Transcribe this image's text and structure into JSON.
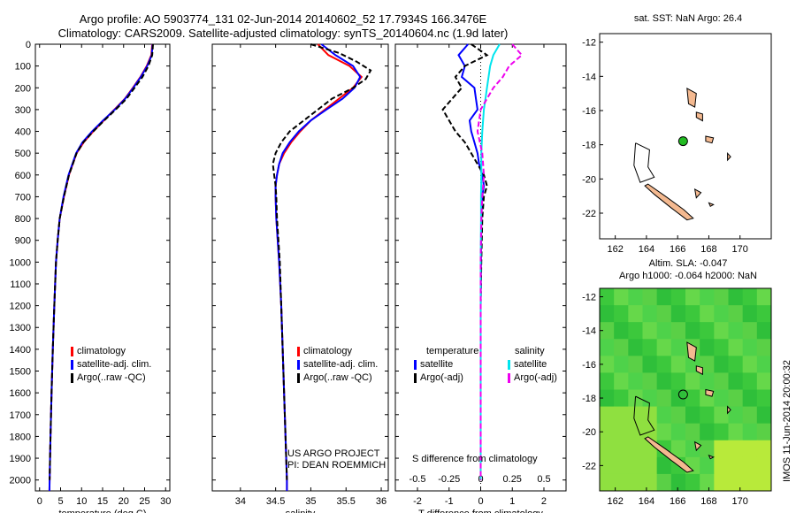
{
  "header": {
    "line1": "Argo profile: AO 5903774_131 02-Jun-2014 20140602_52 17.7934S 166.3476E",
    "line2": "Climatology: CARS2009. Satellite-adjusted climatology: synTS_20140604.nc (1.9d later)"
  },
  "colors": {
    "climatology": "#ff0000",
    "satellite": "#0000ff",
    "argo": "#000000",
    "sat_s": "#00e5ee",
    "argo_s": "#ee00ee",
    "land": "#f4b990"
  },
  "chart_data": [
    {
      "type": "line",
      "id": "temperature",
      "xlabel": "temperature (deg C)",
      "xlim": [
        -1,
        31
      ],
      "ylim": [
        2050,
        0
      ],
      "xticks": [
        0,
        5,
        10,
        15,
        20,
        25,
        30
      ],
      "yticks": [
        0,
        100,
        200,
        300,
        400,
        500,
        600,
        700,
        800,
        900,
        1000,
        1100,
        1200,
        1300,
        1400,
        1500,
        1600,
        1700,
        1800,
        1900,
        2000
      ],
      "series": [
        {
          "name": "climatology",
          "color": "#ff0000",
          "dash": "",
          "depth": [
            0,
            50,
            100,
            150,
            200,
            250,
            300,
            350,
            400,
            450,
            500,
            600,
            700,
            800,
            900,
            1000,
            1200,
            1400,
            1600,
            1800,
            2000,
            2050
          ],
          "values": [
            26.8,
            26.6,
            25.5,
            24,
            22.2,
            20.3,
            17.8,
            15.3,
            12.8,
            10.5,
            8.8,
            7,
            5.8,
            4.8,
            4.3,
            3.9,
            3.5,
            3.15,
            2.85,
            2.6,
            2.4,
            2.35
          ]
        },
        {
          "name": "satellite-adj. clim.",
          "color": "#0000ff",
          "dash": "",
          "depth": [
            0,
            50,
            100,
            150,
            200,
            250,
            300,
            350,
            400,
            450,
            500,
            600,
            700,
            800,
            900,
            1000,
            1200,
            1400,
            1600,
            1800,
            2000,
            2050
          ],
          "values": [
            26.9,
            26.7,
            25.6,
            24.1,
            22.3,
            20.4,
            17.9,
            15.1,
            12.5,
            10.2,
            8.7,
            6.9,
            5.7,
            4.8,
            4.3,
            3.9,
            3.5,
            3.15,
            2.85,
            2.6,
            2.4,
            2.35
          ]
        },
        {
          "name": "Argo(..raw -QC)",
          "color": "#000000",
          "dash": "6,3",
          "depth": [
            0,
            50,
            100,
            150,
            200,
            250,
            300,
            350,
            400,
            450,
            500,
            600,
            700,
            800,
            900,
            1000,
            1200,
            1400,
            1600,
            1800,
            2000
          ],
          "values": [
            27,
            26.8,
            25.9,
            24.5,
            22.6,
            20.7,
            18.1,
            15.4,
            12.8,
            10.4,
            8.8,
            7,
            5.8,
            4.8,
            4.3,
            3.9,
            3.5,
            3.15,
            2.85,
            2.6,
            2.4
          ]
        }
      ],
      "legend": [
        "climatology",
        "satellite-adj. clim.",
        "Argo(..raw -QC)"
      ]
    },
    {
      "type": "line",
      "id": "salinity",
      "xlabel": "salinity",
      "xlim": [
        33.6,
        36.1
      ],
      "ylim": [
        2050,
        0
      ],
      "xticks": [
        34,
        34.5,
        35,
        35.5,
        36
      ],
      "series": [
        {
          "name": "climatology",
          "color": "#ff0000",
          "dash": "",
          "depth": [
            0,
            50,
            100,
            150,
            200,
            250,
            300,
            350,
            400,
            450,
            500,
            550,
            600,
            650,
            700,
            800,
            900,
            1000,
            1200,
            1400,
            1600,
            1800,
            2000,
            2050
          ],
          "values": [
            35.1,
            35.25,
            35.55,
            35.72,
            35.6,
            35.4,
            35.2,
            35.0,
            34.85,
            34.72,
            34.62,
            34.55,
            34.52,
            34.5,
            34.5,
            34.51,
            34.53,
            34.55,
            34.58,
            34.6,
            34.62,
            34.64,
            34.66,
            34.66
          ]
        },
        {
          "name": "satellite-adj. clim.",
          "color": "#0000ff",
          "dash": "",
          "depth": [
            0,
            50,
            100,
            150,
            200,
            250,
            300,
            350,
            400,
            450,
            500,
            550,
            600,
            650,
            700,
            800,
            900,
            1000,
            1200,
            1400,
            1600,
            1800,
            2000,
            2050
          ],
          "values": [
            35.15,
            35.35,
            35.6,
            35.7,
            35.62,
            35.45,
            35.22,
            35.0,
            34.83,
            34.7,
            34.6,
            34.55,
            34.52,
            34.5,
            34.5,
            34.51,
            34.53,
            34.55,
            34.58,
            34.6,
            34.62,
            34.64,
            34.66,
            34.66
          ]
        },
        {
          "name": "Argo(..raw -QC)",
          "color": "#000000",
          "dash": "6,3",
          "depth": [
            0,
            40,
            80,
            120,
            160,
            200,
            250,
            300,
            350,
            400,
            450,
            500,
            550,
            600,
            650,
            700,
            800,
            900,
            1000,
            1200,
            1400,
            1600,
            1800,
            2000
          ],
          "values": [
            35.0,
            35.4,
            35.65,
            35.85,
            35.78,
            35.6,
            35.3,
            35.1,
            34.9,
            34.7,
            34.58,
            34.5,
            34.46,
            34.48,
            34.5,
            34.51,
            34.52,
            34.54,
            34.56,
            34.58,
            34.6,
            34.62,
            34.64,
            34.66
          ]
        }
      ],
      "legend": [
        "climatology",
        "satellite-adj. clim.",
        "Argo(..raw -QC)"
      ]
    },
    {
      "type": "line",
      "id": "difference",
      "xlabel": "T difference from climatology",
      "xlabel_top": "S difference from climatology",
      "xlim": [
        -2.7,
        2.7
      ],
      "ylim": [
        2050,
        0
      ],
      "xticks": [
        -2,
        -1,
        0,
        1,
        2
      ],
      "xtick_labels_top": [
        "-0.5",
        "-0.25",
        "0",
        "0.25",
        "0.5"
      ],
      "series": [
        {
          "name": "temperature satellite",
          "color": "#0000ff",
          "dash": "",
          "depth": [
            0,
            50,
            100,
            150,
            200,
            250,
            300,
            350,
            400,
            450,
            500,
            550,
            600,
            650,
            700,
            800,
            1000,
            1200,
            1500,
            1800,
            2000
          ],
          "values": [
            -0.4,
            -0.7,
            -0.5,
            -0.6,
            -0.2,
            -0.15,
            -0.1,
            -0.35,
            -0.3,
            -0.2,
            -0.1,
            -0.05,
            0.05,
            0.1,
            0.05,
            0.02,
            0.01,
            0,
            0,
            0,
            0
          ]
        },
        {
          "name": "temperature Argo(-adj)",
          "color": "#000000",
          "dash": "6,3",
          "depth": [
            0,
            50,
            100,
            150,
            200,
            250,
            300,
            350,
            400,
            450,
            500,
            550,
            600,
            650,
            700,
            800,
            1000,
            1200,
            1500,
            1800,
            2000
          ],
          "values": [
            -0.3,
            0.2,
            -0.5,
            -0.8,
            -0.6,
            -0.9,
            -1.2,
            -1.0,
            -0.8,
            -0.5,
            -0.3,
            -0.1,
            0.1,
            0.2,
            0.1,
            0.05,
            0.02,
            0,
            0,
            0,
            0
          ]
        },
        {
          "name": "salinity satellite",
          "color": "#00e5ee",
          "dash": "",
          "depth": [
            0,
            50,
            100,
            150,
            200,
            250,
            300,
            400,
            500,
            600,
            700,
            800,
            1000,
            1200,
            1500,
            1800,
            2000
          ],
          "values": [
            0.6,
            0.4,
            0.3,
            0.25,
            0.2,
            0.15,
            0.1,
            0.05,
            0.02,
            0.02,
            0.01,
            0.01,
            0,
            0,
            0,
            0,
            0
          ]
        },
        {
          "name": "salinity Argo(-adj)",
          "color": "#ee00ee",
          "dash": "6,3",
          "depth": [
            0,
            50,
            100,
            150,
            200,
            250,
            300,
            400,
            500,
            600,
            700,
            800,
            1000,
            1200,
            1500,
            1800,
            2000
          ],
          "values": [
            1.0,
            1.3,
            0.9,
            0.7,
            0.4,
            0.2,
            0.0,
            -0.1,
            0.05,
            0.1,
            0.05,
            0.02,
            0,
            0,
            0,
            0,
            0
          ]
        }
      ],
      "legend_title_t": "temperature",
      "legend_title_s": "salinity",
      "legend": [
        "satellite",
        "Argo(-adj)",
        "satellite",
        "Argo(-adj)"
      ]
    },
    {
      "type": "map",
      "id": "sst_map",
      "title": "sat. SST: NaN Argo: 26.4",
      "xlim": [
        161,
        172
      ],
      "ylim": [
        -23.5,
        -11.5
      ],
      "xticks": [
        162,
        164,
        166,
        168,
        170
      ],
      "yticks": [
        -12,
        -14,
        -16,
        -18,
        -20,
        -22
      ],
      "marker": {
        "lon": 166.35,
        "lat": -17.79
      }
    },
    {
      "type": "map",
      "id": "sla_map",
      "title_line1": "Altim. SLA: -0.047",
      "title_line2": "Argo h1000: -0.064 h2000: NaN",
      "xlim": [
        161,
        172
      ],
      "ylim": [
        -23.5,
        -11.5
      ],
      "xticks": [
        162,
        164,
        166,
        168,
        170
      ],
      "yticks": [
        -12,
        -14,
        -16,
        -18,
        -20,
        -22
      ],
      "marker": {
        "lon": 166.35,
        "lat": -17.79
      }
    }
  ],
  "notes": {
    "project_line1": "US ARGO PROJECT",
    "project_line2": "PI: DEAN ROEMMICH",
    "credit": "IMOS 11-Jun-2014 20:00:32"
  }
}
